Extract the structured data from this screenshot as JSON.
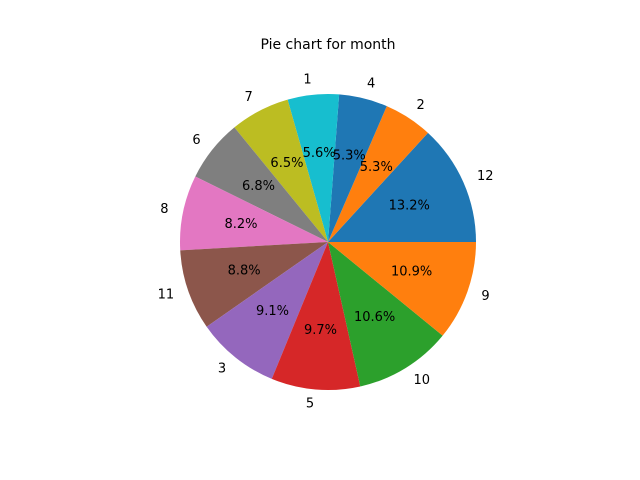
{
  "chart_data": {
    "type": "pie",
    "title": "Pie chart for month",
    "labels": [
      "12",
      "2",
      "4",
      "1",
      "7",
      "6",
      "8",
      "11",
      "3",
      "5",
      "10",
      "9"
    ],
    "values": [
      13.2,
      5.3,
      5.3,
      5.6,
      6.5,
      6.8,
      8.2,
      8.8,
      9.1,
      9.7,
      10.6,
      10.9
    ],
    "percent_labels": [
      "13.2%",
      "5.3%",
      "5.3%",
      "5.6%",
      "6.5%",
      "6.8%",
      "8.2%",
      "8.8%",
      "9.1%",
      "9.7%",
      "10.6%",
      "10.9%"
    ],
    "colors": [
      "#1f77b4",
      "#ff7f0e",
      "#1f77b4",
      "#17becf",
      "#bcbd22",
      "#7f7f7f",
      "#e377c2",
      "#8c564b",
      "#9467bd",
      "#d62728",
      "#2ca02c",
      "#ff7f0e"
    ],
    "start_angle_deg": 0,
    "direction": "counterclockwise",
    "legend": "none"
  }
}
